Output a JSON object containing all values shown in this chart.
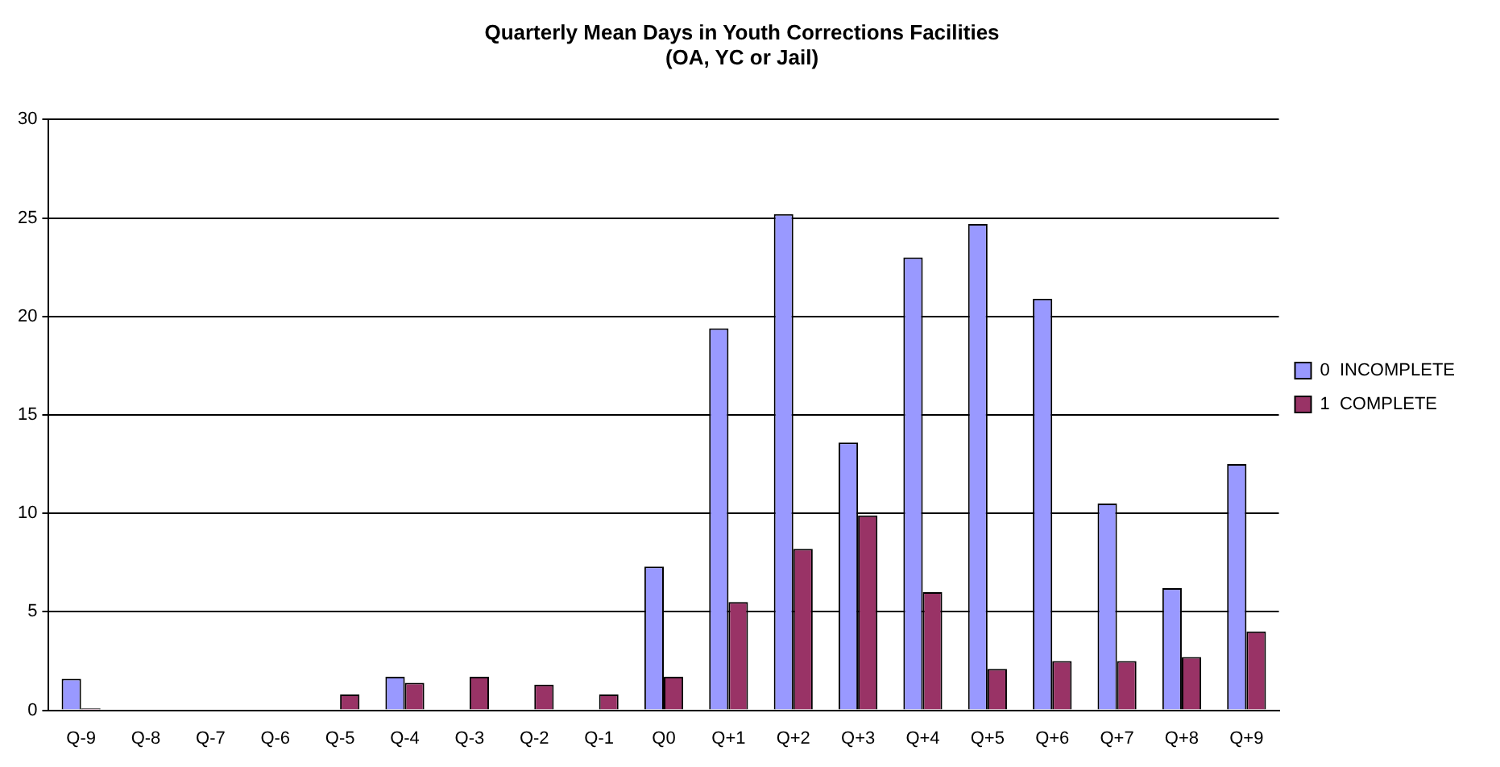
{
  "chart_data": {
    "type": "bar",
    "title": "Quarterly Mean Days in Youth Corrections Facilities\n(OA, YC or Jail)",
    "categories": [
      "Q-9",
      "Q-8",
      "Q-7",
      "Q-6",
      "Q-5",
      "Q-4",
      "Q-3",
      "Q-2",
      "Q-1",
      "Q0",
      "Q+1",
      "Q+2",
      "Q+3",
      "Q+4",
      "Q+5",
      "Q+6",
      "Q+7",
      "Q+8",
      "Q+9"
    ],
    "series": [
      {
        "name": "0  INCOMPLETE",
        "color": "#9999ff",
        "values": [
          1.6,
          0,
          0,
          0,
          0,
          1.7,
          0,
          0,
          0,
          7.3,
          19.4,
          25.2,
          13.6,
          23.0,
          24.7,
          20.9,
          10.5,
          6.2,
          12.5
        ]
      },
      {
        "name": "1  COMPLETE",
        "color": "#993366",
        "values": [
          0.1,
          0,
          0,
          0,
          0.8,
          1.4,
          1.7,
          1.3,
          0.8,
          1.7,
          5.5,
          8.2,
          9.9,
          6.0,
          2.1,
          2.5,
          2.5,
          2.7,
          4.0
        ]
      }
    ],
    "ylim": [
      0,
      30
    ],
    "yticks": [
      0,
      5,
      10,
      15,
      20,
      25,
      30
    ],
    "grid": "y",
    "legend": "right"
  }
}
